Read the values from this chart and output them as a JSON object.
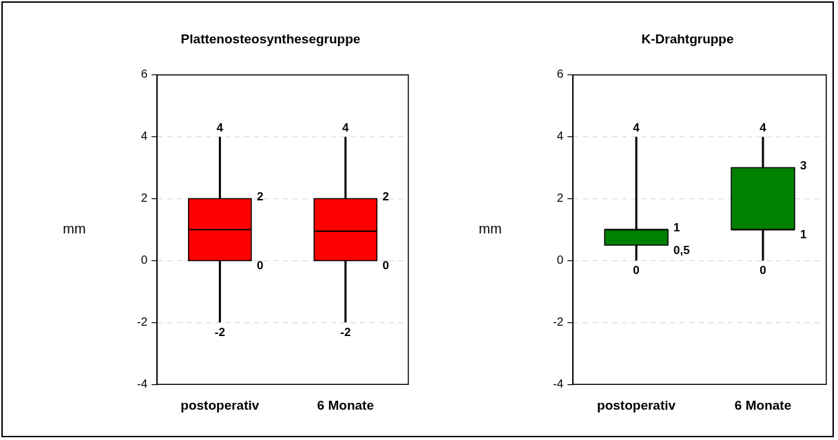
{
  "chart_data": [
    {
      "type": "box",
      "title": "Plattenosteosynthesegruppe",
      "ylabel": "mm",
      "categories": [
        "postoperativ",
        "6 Monate"
      ],
      "series": [
        {
          "color": "#ff0000",
          "boxes": [
            {
              "low": -2,
              "q1": 0,
              "median": 1,
              "q3": 2,
              "high": 4
            },
            {
              "low": -2,
              "q1": 0,
              "median": 0.95,
              "q3": 2,
              "high": 4
            }
          ]
        }
      ],
      "ylim": [
        -4,
        6
      ],
      "yticks": [
        -4,
        -2,
        0,
        2,
        4,
        6
      ],
      "grid": "y",
      "legend": false,
      "annotations": [
        {
          "text": "4",
          "x": "postoperativ",
          "y": 4
        },
        "2",
        "0",
        {
          "text": "-2",
          "x": "postoperativ",
          "y": -2
        },
        {
          "text": "4",
          "x": "6 Monate",
          "y": 4
        },
        "2",
        "0",
        {
          "text": "-2",
          "x": "6 Monate",
          "y": -2
        }
      ]
    },
    {
      "type": "box",
      "title": "K-Drahtgruppe",
      "ylabel": "mm",
      "categories": [
        "postoperativ",
        "6 Monate"
      ],
      "series": [
        {
          "color": "#008000",
          "boxes": [
            {
              "low": 0,
              "q1": 0.5,
              "median": 1,
              "q3": 1,
              "high": 4
            },
            {
              "low": 0,
              "q1": 1,
              "median": 1,
              "q3": 3,
              "high": 4
            }
          ]
        }
      ],
      "ylim": [
        -4,
        6
      ],
      "yticks": [
        -4,
        -2,
        0,
        2,
        4,
        6
      ],
      "grid": "y",
      "legend": false,
      "annotations": [
        {
          "text": "4",
          "x": "postoperativ",
          "y": 4
        },
        "1",
        "0,5",
        {
          "text": "0",
          "x": "postoperativ",
          "y": 0
        },
        {
          "text": "4",
          "x": "6 Monate",
          "y": 4
        },
        "3",
        "1",
        {
          "text": "0",
          "x": "6 Monate",
          "y": 0
        }
      ]
    }
  ]
}
